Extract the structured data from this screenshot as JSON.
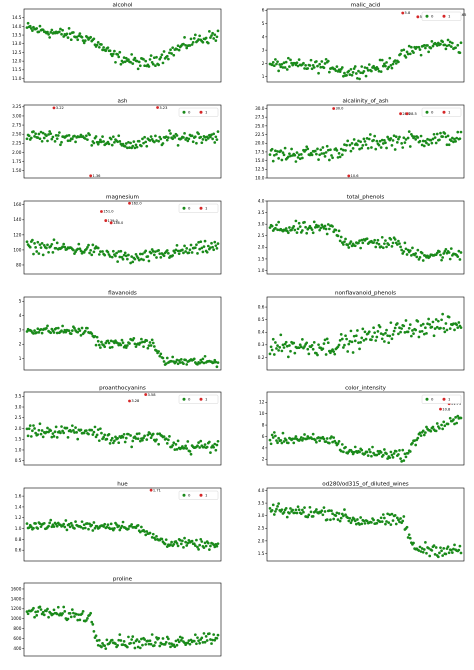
{
  "colors": {
    "normal": "#1a8a1a",
    "outlier": "#d62728"
  },
  "legend": [
    "0",
    "1"
  ],
  "chart_data": [
    {
      "type": "scatter",
      "title": "alcohol",
      "ylim": [
        10.8,
        15.0
      ],
      "yticks": [
        "11.0",
        "11.5",
        "12.0",
        "12.5",
        "13.0",
        "13.5",
        "14.0",
        "14.5"
      ],
      "yvals": [
        11.0,
        11.5,
        12.0,
        12.5,
        13.0,
        13.5,
        14.0,
        14.5
      ],
      "legend": false,
      "n": 178,
      "pattern": [
        [
          0,
          13.9
        ],
        [
          0.33,
          13.3
        ],
        [
          0.45,
          12.3
        ],
        [
          0.62,
          11.8
        ],
        [
          0.75,
          12.5
        ],
        [
          0.88,
          13.2
        ],
        [
          1,
          13.5
        ]
      ],
      "spread": 0.42,
      "outliers": []
    },
    {
      "type": "scatter",
      "title": "malic_acid",
      "ylim": [
        0.6,
        6.1
      ],
      "yticks": [
        "1",
        "2",
        "3",
        "4",
        "5",
        "6"
      ],
      "yvals": [
        1,
        2,
        3,
        4,
        5,
        6
      ],
      "legend": true,
      "n": 178,
      "pattern": [
        [
          0,
          1.9
        ],
        [
          0.2,
          1.8
        ],
        [
          0.33,
          1.8
        ],
        [
          0.4,
          1.3
        ],
        [
          0.6,
          1.8
        ],
        [
          0.75,
          3.0
        ],
        [
          0.9,
          3.5
        ],
        [
          1,
          3.2
        ]
      ],
      "spread": 0.55,
      "outliers": [
        {
          "x": 123,
          "y": 5.8,
          "label": "5.8"
        },
        {
          "x": 137,
          "y": 5.51,
          "label": "5.51"
        },
        {
          "x": 173,
          "y": 5.65,
          "label": "5.65"
        }
      ]
    },
    {
      "type": "scatter",
      "title": "ash",
      "ylim": [
        1.3,
        3.3
      ],
      "yticks": [
        "1.50",
        "1.75",
        "2.00",
        "2.25",
        "2.50",
        "2.75",
        "3.00",
        "3.25"
      ],
      "yvals": [
        1.5,
        1.75,
        2.0,
        2.25,
        2.5,
        2.75,
        3.0,
        3.25
      ],
      "legend": true,
      "n": 178,
      "pattern": [
        [
          0,
          2.45
        ],
        [
          0.33,
          2.4
        ],
        [
          0.55,
          2.2
        ],
        [
          0.75,
          2.4
        ],
        [
          1,
          2.45
        ]
      ],
      "spread": 0.2,
      "outliers": [
        {
          "x": 25,
          "y": 3.22,
          "label": "3.22"
        },
        {
          "x": 59,
          "y": 1.36,
          "label": "1.36"
        },
        {
          "x": 121,
          "y": 3.23,
          "label": "3.23"
        }
      ]
    },
    {
      "type": "scatter",
      "title": "alcalinity_of_ash",
      "ylim": [
        10.0,
        31.0
      ],
      "yticks": [
        "10.0",
        "12.5",
        "15.0",
        "17.5",
        "20.0",
        "22.5",
        "25.0",
        "27.5",
        "30.0"
      ],
      "yvals": [
        10,
        12.5,
        15,
        17.5,
        20,
        22.5,
        25,
        27.5,
        30
      ],
      "legend": true,
      "n": 178,
      "pattern": [
        [
          0,
          16.5
        ],
        [
          0.33,
          17.5
        ],
        [
          0.5,
          20
        ],
        [
          0.7,
          21
        ],
        [
          1,
          21.5
        ]
      ],
      "spread": 2.6,
      "outliers": [
        {
          "x": 59,
          "y": 30.0,
          "label": "30.0"
        },
        {
          "x": 73,
          "y": 10.6,
          "label": "10.6"
        },
        {
          "x": 121,
          "y": 28.5,
          "label": "28.5"
        },
        {
          "x": 127,
          "y": 28.5,
          "label": "28.5"
        }
      ]
    },
    {
      "type": "scatter",
      "title": "magnesium",
      "ylim": [
        68,
        165
      ],
      "yticks": [
        "80",
        "100",
        "120",
        "140",
        "160"
      ],
      "yvals": [
        80,
        100,
        120,
        140,
        160
      ],
      "legend": true,
      "n": 178,
      "pattern": [
        [
          0,
          105
        ],
        [
          0.33,
          100
        ],
        [
          0.55,
          88
        ],
        [
          0.75,
          96
        ],
        [
          1,
          105
        ]
      ],
      "spread": 10,
      "outliers": [
        {
          "x": 69,
          "y": 151.0,
          "label": "151.0"
        },
        {
          "x": 73,
          "y": 139.0,
          "label": "139.0"
        },
        {
          "x": 78,
          "y": 136.0,
          "label": "136.0"
        },
        {
          "x": 95,
          "y": 162.0,
          "label": "162.0"
        }
      ]
    },
    {
      "type": "scatter",
      "title": "total_phenols",
      "ylim": [
        0.85,
        4.0
      ],
      "yticks": [
        "1.0",
        "1.5",
        "2.0",
        "2.5",
        "3.0",
        "3.5",
        "4.0"
      ],
      "yvals": [
        1.0,
        1.5,
        2.0,
        2.5,
        3.0,
        3.5,
        4.0
      ],
      "legend": false,
      "n": 178,
      "pattern": [
        [
          0,
          2.8
        ],
        [
          0.33,
          2.8
        ],
        [
          0.4,
          2.2
        ],
        [
          0.65,
          2.2
        ],
        [
          0.75,
          1.7
        ],
        [
          1,
          1.7
        ]
      ],
      "spread": 0.33,
      "outliers": []
    },
    {
      "type": "scatter",
      "title": "flavanoids",
      "ylim": [
        0.2,
        5.3
      ],
      "yticks": [
        "1",
        "2",
        "3",
        "4",
        "5"
      ],
      "yvals": [
        1,
        2,
        3,
        4,
        5
      ],
      "legend": false,
      "n": 178,
      "pattern": [
        [
          0,
          3.0
        ],
        [
          0.33,
          2.9
        ],
        [
          0.38,
          2.0
        ],
        [
          0.65,
          2.1
        ],
        [
          0.72,
          0.8
        ],
        [
          1,
          0.75
        ]
      ],
      "spread": 0.38,
      "outliers": []
    },
    {
      "type": "scatter",
      "title": "nonflavanoid_phenols",
      "ylim": [
        0.1,
        0.68
      ],
      "yticks": [
        "0.2",
        "0.3",
        "0.4",
        "0.5",
        "0.6"
      ],
      "yvals": [
        0.2,
        0.3,
        0.4,
        0.5,
        0.6
      ],
      "legend": false,
      "n": 178,
      "pattern": [
        [
          0,
          0.29
        ],
        [
          0.33,
          0.29
        ],
        [
          0.5,
          0.36
        ],
        [
          0.75,
          0.44
        ],
        [
          1,
          0.46
        ]
      ],
      "spread": 0.09,
      "outliers": []
    },
    {
      "type": "scatter",
      "title": "proanthocyanins",
      "ylim": [
        0.3,
        3.7
      ],
      "yticks": [
        "0.5",
        "1.0",
        "1.5",
        "2.0",
        "2.5",
        "3.0",
        "3.5"
      ],
      "yvals": [
        0.5,
        1.0,
        1.5,
        2.0,
        2.5,
        3.0,
        3.5
      ],
      "legend": true,
      "n": 178,
      "pattern": [
        [
          0,
          1.9
        ],
        [
          0.33,
          1.9
        ],
        [
          0.45,
          1.5
        ],
        [
          0.7,
          1.6
        ],
        [
          0.8,
          1.1
        ],
        [
          1,
          1.2
        ]
      ],
      "spread": 0.38,
      "outliers": [
        {
          "x": 95,
          "y": 3.28,
          "label": "3.28"
        },
        {
          "x": 110,
          "y": 3.58,
          "label": "3.58"
        }
      ]
    },
    {
      "type": "scatter",
      "title": "color_intensity",
      "ylim": [
        1.0,
        13.8
      ],
      "yticks": [
        "2",
        "4",
        "6",
        "8",
        "10",
        "12"
      ],
      "yvals": [
        2,
        4,
        6,
        8,
        10,
        12
      ],
      "legend": true,
      "n": 178,
      "pattern": [
        [
          0,
          5.6
        ],
        [
          0.33,
          5.4
        ],
        [
          0.4,
          3.5
        ],
        [
          0.72,
          2.7
        ],
        [
          0.78,
          6.5
        ],
        [
          1,
          9.0
        ]
      ],
      "spread": 1.1,
      "outliers": [
        {
          "x": 158,
          "y": 10.8,
          "label": "10.8"
        },
        {
          "x": 163,
          "y": 13.0,
          "label": "13.0"
        },
        {
          "x": 166,
          "y": 11.75,
          "label": "11.75"
        }
      ]
    },
    {
      "type": "scatter",
      "title": "hue",
      "ylim": [
        0.4,
        1.75
      ],
      "yticks": [
        "0.6",
        "0.8",
        "1.0",
        "1.2",
        "1.4",
        "1.6"
      ],
      "yvals": [
        0.6,
        0.8,
        1.0,
        1.2,
        1.4,
        1.6
      ],
      "legend": true,
      "n": 178,
      "pattern": [
        [
          0,
          1.07
        ],
        [
          0.33,
          1.05
        ],
        [
          0.55,
          1.05
        ],
        [
          0.72,
          0.75
        ],
        [
          1,
          0.68
        ]
      ],
      "spread": 0.1,
      "outliers": [
        {
          "x": 115,
          "y": 1.71,
          "label": "1.71"
        }
      ]
    },
    {
      "type": "scatter",
      "title": "od280/od315_of_diluted_wines",
      "ylim": [
        1.2,
        4.1
      ],
      "yticks": [
        "1.5",
        "2.0",
        "2.5",
        "3.0",
        "3.5",
        "4.0"
      ],
      "yvals": [
        1.5,
        2.0,
        2.5,
        3.0,
        3.5,
        4.0
      ],
      "legend": false,
      "n": 178,
      "pattern": [
        [
          0,
          3.2
        ],
        [
          0.33,
          3.1
        ],
        [
          0.45,
          2.8
        ],
        [
          0.7,
          2.8
        ],
        [
          0.75,
          1.7
        ],
        [
          1,
          1.6
        ]
      ],
      "spread": 0.3,
      "outliers": []
    },
    {
      "type": "scatter",
      "title": "proline",
      "ylim": [
        250,
        1720
      ],
      "yticks": [
        "400",
        "600",
        "800",
        "1000",
        "1200",
        "1400",
        "1600"
      ],
      "yvals": [
        400,
        600,
        800,
        1000,
        1200,
        1400,
        1600
      ],
      "legend": false,
      "n": 178,
      "pattern": [
        [
          0,
          1150
        ],
        [
          0.33,
          1050
        ],
        [
          0.37,
          550
        ],
        [
          0.72,
          520
        ],
        [
          1,
          640
        ]
      ],
      "spread": 150,
      "outliers": []
    }
  ]
}
